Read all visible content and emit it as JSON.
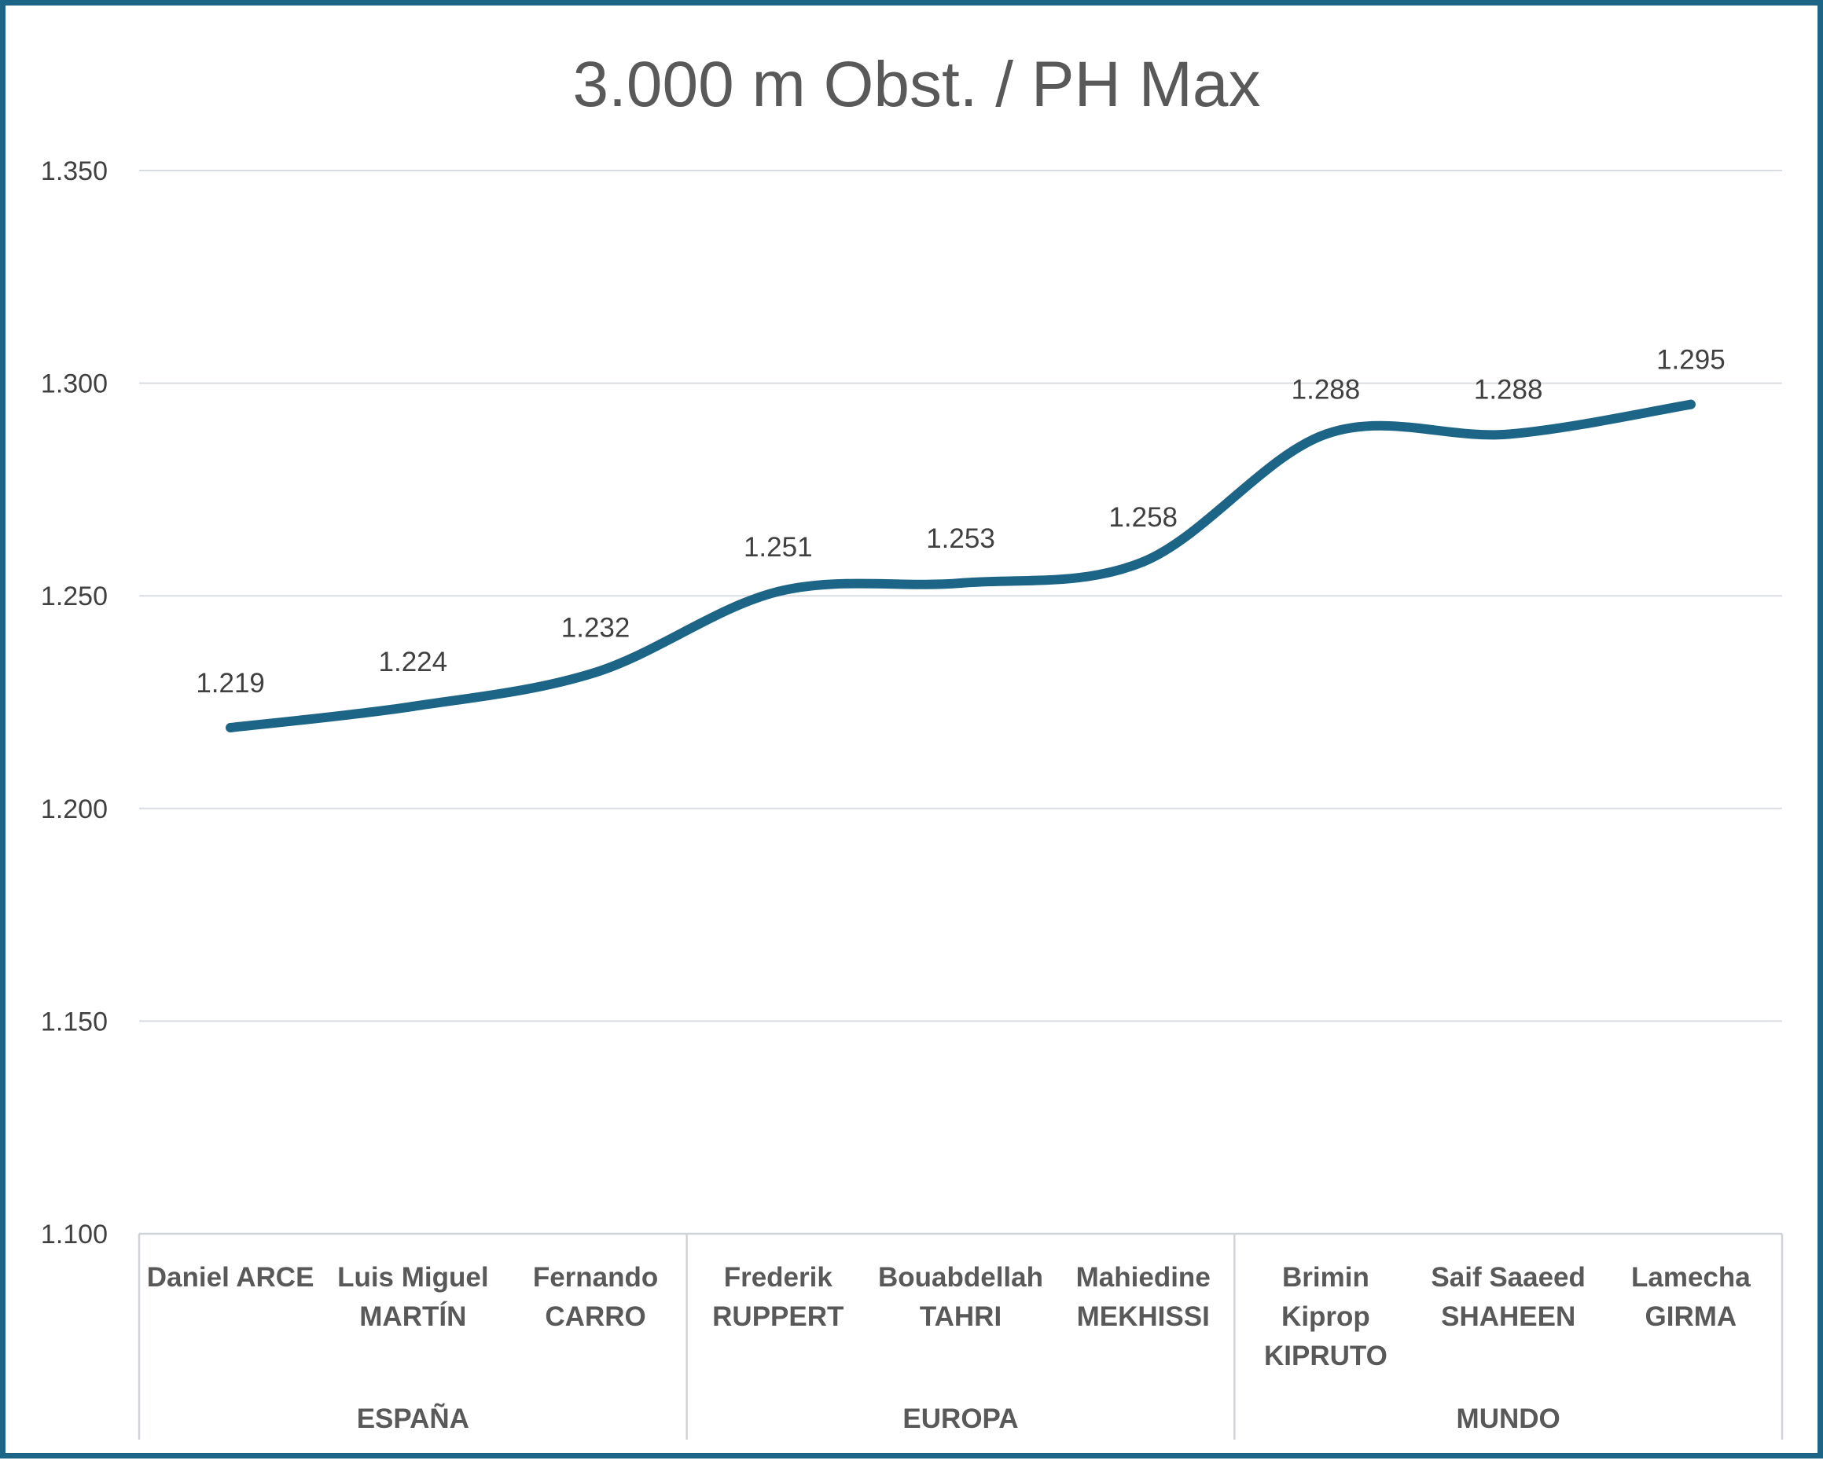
{
  "chart_data": {
    "type": "line",
    "title": "3.000 m Obst. / PH Max",
    "xlabel": "",
    "ylabel": "",
    "ylim": [
      1.1,
      1.35
    ],
    "yticks": [
      "1.100",
      "1.150",
      "1.200",
      "1.250",
      "1.300",
      "1.350"
    ],
    "ytick_values": [
      1.1,
      1.15,
      1.2,
      1.25,
      1.3,
      1.35
    ],
    "grid": true,
    "smooth": true,
    "line_color": "#1d6587",
    "categories": [
      [
        "Daniel ARCE"
      ],
      [
        "Luis Miguel",
        "MARTÍN"
      ],
      [
        "Fernando",
        "CARRO"
      ],
      [
        "Frederik",
        "RUPPERT"
      ],
      [
        "Bouabdellah",
        "TAHRI"
      ],
      [
        "Mahiedine",
        "MEKHISSI"
      ],
      [
        "Brimin",
        "Kiprop",
        "KIPRUTO"
      ],
      [
        "Saif Saaeed",
        "SHAHEEN"
      ],
      [
        "Lamecha",
        "GIRMA"
      ]
    ],
    "groups": [
      {
        "label": "ESPAÑA",
        "count": 3
      },
      {
        "label": "EUROPA",
        "count": 3
      },
      {
        "label": "MUNDO",
        "count": 3
      }
    ],
    "series": [
      {
        "values": [
          1.219,
          1.224,
          1.232,
          1.251,
          1.253,
          1.258,
          1.288,
          1.288,
          1.295
        ],
        "labels": [
          "1.219",
          "1.224",
          "1.232",
          "1.251",
          "1.253",
          "1.258",
          "1.288",
          "1.288",
          "1.295"
        ]
      }
    ]
  }
}
